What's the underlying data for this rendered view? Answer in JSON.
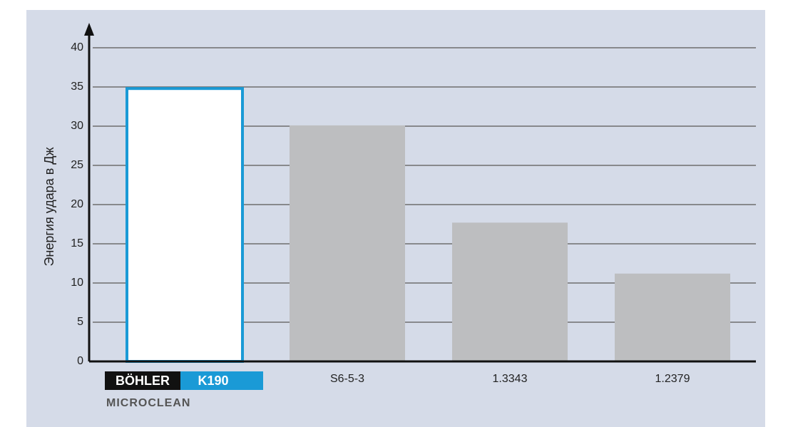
{
  "chart_data": {
    "type": "bar",
    "y_label": "Энергия удара в Дж",
    "categories": [
      "K190",
      "S6-5-3",
      "1.3343",
      "1.2379"
    ],
    "logo": {
      "brand": "BÖHLER",
      "sub": "MICROCLEAN"
    },
    "values": [
      34.8,
      30.1,
      17.7,
      11.2
    ],
    "colors": [
      "#ffffff",
      "#bdbec0",
      "#bdbec0",
      "#bdbec0"
    ],
    "edge_color": "#1a9ad6",
    "ylim": [
      0,
      40
    ],
    "yticks": [
      0,
      5,
      10,
      15,
      20,
      25,
      30,
      35,
      40
    ],
    "grid": true
  }
}
